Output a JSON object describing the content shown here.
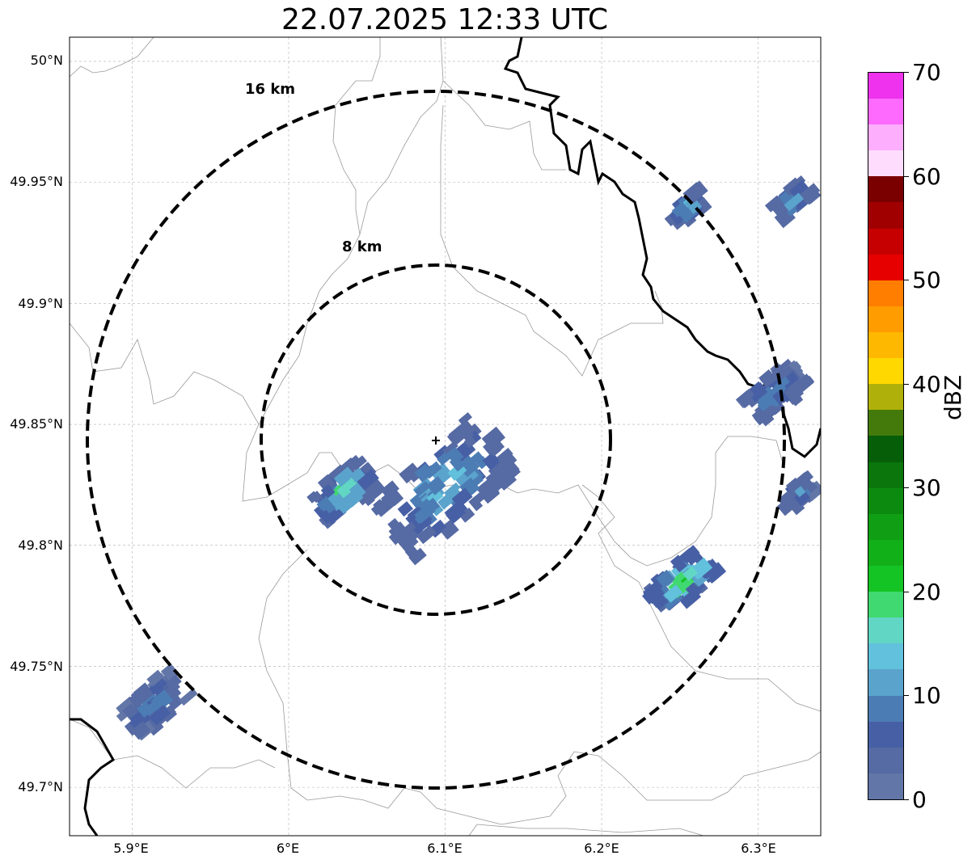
{
  "title": "22.07.2025 12:33 UTC",
  "map": {
    "lon_range": [
      5.86,
      6.34
    ],
    "lat_range": [
      49.68,
      50.01
    ],
    "center": {
      "lon": 6.095,
      "lat": 49.843
    },
    "rings": [
      {
        "label": "8 km",
        "radius_km": 8
      },
      {
        "label": "16 km",
        "radius_km": 16
      }
    ],
    "yticks": [
      {
        "value": 50.0,
        "label": "50°N"
      },
      {
        "value": 49.95,
        "label": "49.95°N"
      },
      {
        "value": 49.9,
        "label": "49.9°N"
      },
      {
        "value": 49.85,
        "label": "49.85°N"
      },
      {
        "value": 49.8,
        "label": "49.8°N"
      },
      {
        "value": 49.75,
        "label": "49.75°N"
      },
      {
        "value": 49.7,
        "label": "49.7°N"
      }
    ],
    "xticks": [
      {
        "value": 5.9,
        "label": "5.9°E"
      },
      {
        "value": 6.0,
        "label": "6°E"
      },
      {
        "value": 6.1,
        "label": "6.1°E"
      },
      {
        "value": 6.2,
        "label": "6.2°E"
      },
      {
        "value": 6.3,
        "label": "6.3°E"
      }
    ],
    "grid": true,
    "gridline_color": "#b0b0b0",
    "boundary_color": "#000000",
    "region_line_color": "#999999"
  },
  "colorbar": {
    "label": "dBZ",
    "min": 0,
    "max": 70,
    "tick_values": [
      0,
      10,
      20,
      30,
      40,
      50,
      60,
      70
    ],
    "tick_labels": [
      "0",
      "10",
      "20",
      "30",
      "40",
      "50",
      "60",
      "70"
    ],
    "colors": [
      "#6276a8",
      "#566aa3",
      "#4760a5",
      "#4c7cb4",
      "#5aa3cc",
      "#62c1dc",
      "#62d6c4",
      "#40d870",
      "#14c424",
      "#12b018",
      "#109e14",
      "#0c8a10",
      "#0a760c",
      "#065e08",
      "#447a0c",
      "#b0b00a",
      "#ffd800",
      "#ffb800",
      "#ff9c00",
      "#ff7e00",
      "#e60000",
      "#c60000",
      "#a00000",
      "#7a0000",
      "#fddcfd",
      "#fdaefd",
      "#fd6afd",
      "#ee32ee"
    ]
  },
  "chart_data": {
    "type": "radar-map",
    "echo_clusters": [
      {
        "lon": 6.1,
        "lat": 49.825,
        "max_dbz": 17,
        "spread": "large"
      },
      {
        "lon": 6.035,
        "lat": 49.822,
        "max_dbz": 23,
        "spread": "medium"
      },
      {
        "lon": 6.252,
        "lat": 49.785,
        "max_dbz": 27,
        "spread": "medium"
      },
      {
        "lon": 6.255,
        "lat": 49.94,
        "max_dbz": 17,
        "spread": "small"
      },
      {
        "lon": 6.322,
        "lat": 49.943,
        "max_dbz": 19,
        "spread": "small"
      },
      {
        "lon": 6.31,
        "lat": 49.863,
        "max_dbz": 13,
        "spread": "medium"
      },
      {
        "lon": 6.327,
        "lat": 49.822,
        "max_dbz": 12,
        "spread": "small"
      },
      {
        "lon": 5.915,
        "lat": 49.735,
        "max_dbz": 13,
        "spread": "medium"
      }
    ]
  }
}
